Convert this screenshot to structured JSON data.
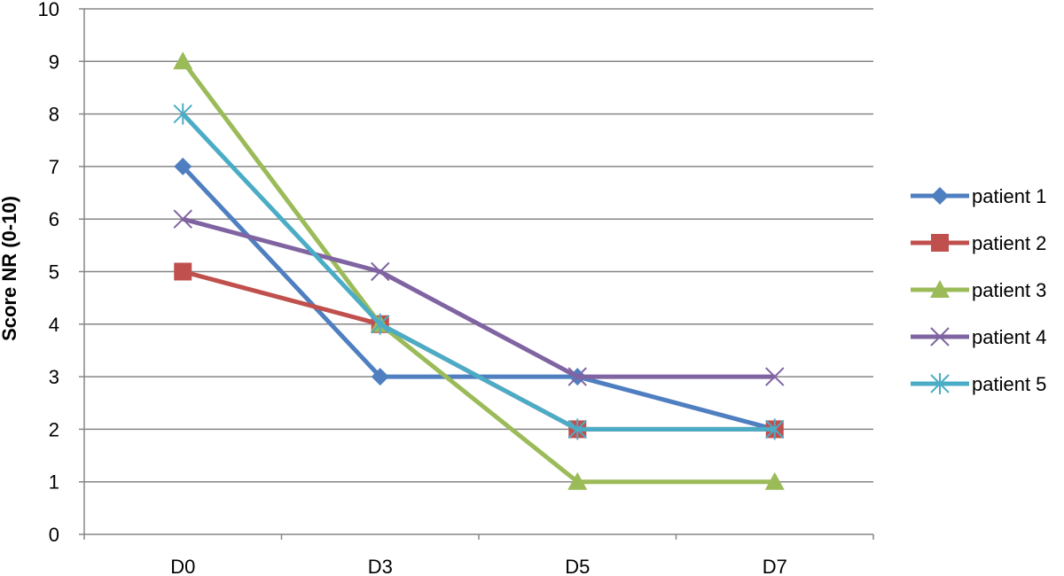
{
  "chart_data": {
    "type": "line",
    "title": "",
    "xlabel": "",
    "ylabel": "Score NR (0-10)",
    "categories": [
      "D0",
      "D3",
      "D5",
      "D7"
    ],
    "ylim": [
      0,
      10
    ],
    "yticks": [
      "0",
      "1",
      "2",
      "3",
      "4",
      "5",
      "6",
      "7",
      "8",
      "9",
      "10"
    ],
    "grid": true,
    "legend_position": "right",
    "series": [
      {
        "name": "patient 1",
        "values": [
          7,
          3,
          3,
          2
        ],
        "color": "#4F7FC0",
        "marker": "diamond"
      },
      {
        "name": "patient 2",
        "values": [
          5,
          4,
          2,
          2
        ],
        "color": "#C0504D",
        "marker": "square"
      },
      {
        "name": "patient 3",
        "values": [
          9,
          4,
          1,
          1
        ],
        "color": "#9BBB59",
        "marker": "triangle"
      },
      {
        "name": "patient 4",
        "values": [
          6,
          5,
          3,
          3
        ],
        "color": "#8064A2",
        "marker": "x"
      },
      {
        "name": "patient 5",
        "values": [
          8,
          4,
          2,
          2
        ],
        "color": "#4BACC6",
        "marker": "star"
      }
    ]
  }
}
